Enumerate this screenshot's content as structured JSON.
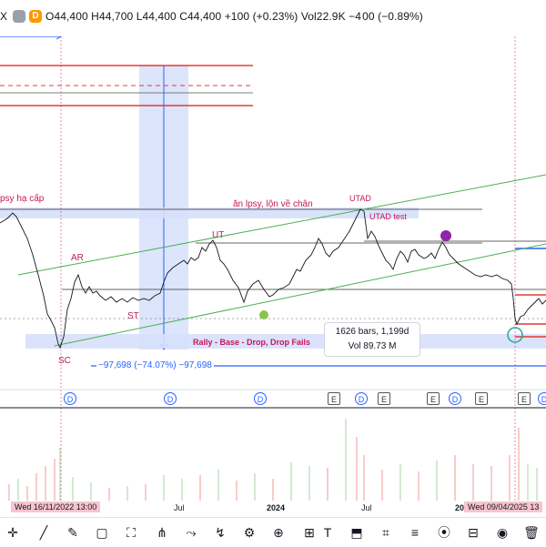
{
  "header": {
    "symbol_suffix": "X",
    "badge_1": "",
    "badge_2": "D",
    "ohlc": "O44,400  H44,700  L44,400  C44,400  +100 (+0.23%)  Vol22.9K  −4 00 (−0.89%)"
  },
  "annotations": {
    "left_label": "psy hạ cấp",
    "center_label": "ăn lpsy, lộn về chân",
    "utad": "UTAD",
    "utad_test": "UTAD test",
    "ut": "UT",
    "ar": "AR",
    "st": "ST",
    "sc": "SC",
    "pattern": "Rally - Base - Drop, Drop Fails"
  },
  "info_box": {
    "bars": "1626 bars, 1,199d",
    "vol": "Vol 89.73 M"
  },
  "measure": {
    "text": "−97,698 (−74.07%) −97,698"
  },
  "events": [
    "D",
    "D",
    "D",
    "E",
    "D",
    "E",
    "E",
    "D",
    "E",
    "E",
    "D"
  ],
  "xaxis": {
    "left_date": "Wed 16/11/2022   13:00",
    "jul_1": "Jul",
    "year": "2024",
    "jul_2": "Jul",
    "right_year": "20",
    "right_date": "Wed 09/04/2025   13"
  },
  "toolbar": {
    "icons": [
      "crosshair-icon",
      "line-tool-icon",
      "brush-icon",
      "rectangle-icon",
      "fork-icon",
      "pattern-icon",
      "forecast-icon",
      "measure-icon",
      "text-icon",
      "zoom-icon",
      "lock-icon",
      "magnet-icon",
      "hide-icon",
      "delete-icon"
    ]
  },
  "colors": {
    "red": "#e53935",
    "green": "#4caf50",
    "blue": "#2962ff",
    "magenta": "#c2185b",
    "shade": "#d6e0fb"
  }
}
